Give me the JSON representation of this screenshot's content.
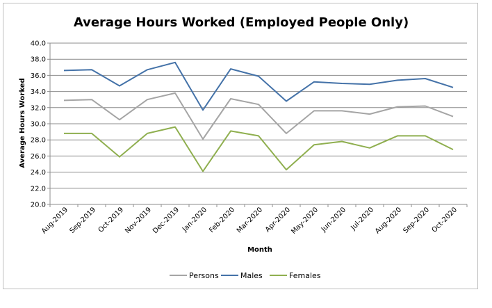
{
  "chart_data": {
    "type": "line",
    "title": "Average Hours Worked (Employed People Only)",
    "xlabel": "Month",
    "ylabel": "Average Hours Worked",
    "ylim": [
      20.0,
      40.0
    ],
    "ytick_step": 2.0,
    "yticks": [
      "20.0",
      "22.0",
      "24.0",
      "26.0",
      "28.0",
      "30.0",
      "32.0",
      "34.0",
      "36.0",
      "38.0",
      "40.0"
    ],
    "grid": true,
    "legend_position": "bottom",
    "categories": [
      "Aug-2019",
      "Sep-2019",
      "Oct-2019",
      "Nov-2019",
      "Dec-2019",
      "Jan-2020",
      "Feb-2020",
      "Mar-2020",
      "Apr-2020",
      "May-2020",
      "Jun-2020",
      "Jul-2020",
      "Aug-2020",
      "Sep-2020",
      "Oct-2020"
    ],
    "series": [
      {
        "name": "Persons",
        "color": "#a5a5a5",
        "values": [
          32.9,
          33.0,
          30.5,
          33.0,
          33.8,
          28.1,
          33.1,
          32.4,
          28.8,
          31.6,
          31.6,
          31.2,
          32.1,
          32.2,
          30.9
        ]
      },
      {
        "name": "Males",
        "color": "#4472a8",
        "values": [
          36.6,
          36.7,
          34.7,
          36.7,
          37.6,
          31.7,
          36.8,
          35.9,
          32.8,
          35.2,
          35.0,
          34.9,
          35.4,
          35.6,
          34.5
        ]
      },
      {
        "name": "Females",
        "color": "#8faf4f",
        "values": [
          28.8,
          28.8,
          25.9,
          28.8,
          29.6,
          24.1,
          29.1,
          28.5,
          24.3,
          27.4,
          27.8,
          27.0,
          28.5,
          28.5,
          26.8
        ]
      }
    ]
  }
}
